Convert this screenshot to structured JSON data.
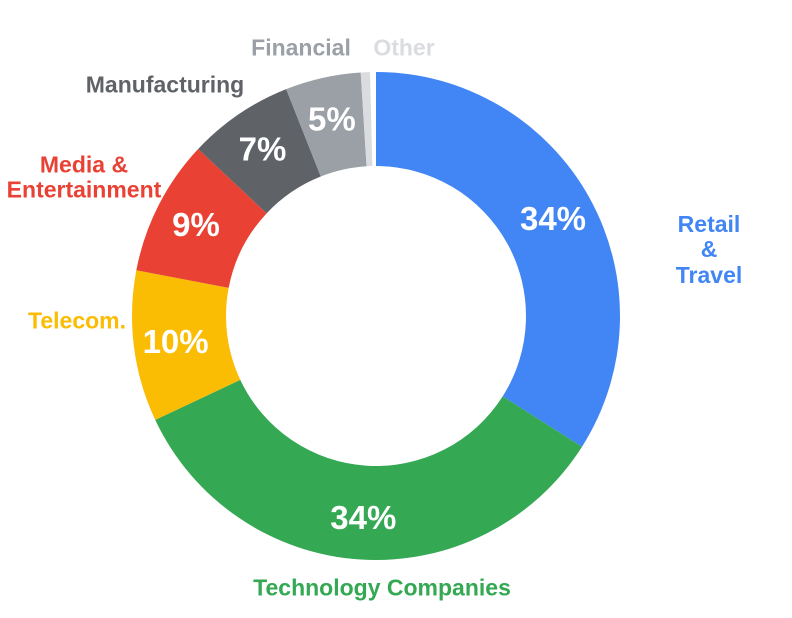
{
  "chart_data": {
    "type": "pie",
    "subtype": "donut",
    "title": "",
    "unit": "%",
    "direction": "clockwise",
    "start_angle_deg": 0,
    "legend_position": "outside-labels",
    "background_color": "#FFFFFF",
    "value_label_color": "#FFFFFF",
    "categories": [
      "Retail & Travel",
      "Technology Companies",
      "Telecom.",
      "Media & Entertainment",
      "Manufacturing",
      "Financial",
      "Other"
    ],
    "values": [
      34,
      34,
      10,
      9,
      7,
      5,
      1
    ],
    "slices": [
      {
        "label": "Retail & Travel",
        "value": 34,
        "pct_label": "34%",
        "color": "#4285F4",
        "label_color": "#4285F4"
      },
      {
        "label": "Technology Companies",
        "value": 34,
        "pct_label": "34%",
        "color": "#34A853",
        "label_color": "#34A853"
      },
      {
        "label": "Telecom.",
        "value": 10,
        "pct_label": "10%",
        "color": "#FBBC04",
        "label_color": "#FBBC04"
      },
      {
        "label": "Media &\nEntertainment",
        "value": 9,
        "pct_label": "9%",
        "color": "#E94235",
        "label_color": "#E94235"
      },
      {
        "label": "Manufacturing",
        "value": 7,
        "pct_label": "7%",
        "color": "#5F6368",
        "label_color": "#5F6368"
      },
      {
        "label": "Financial",
        "value": 5,
        "pct_label": "5%",
        "color": "#9AA0A6",
        "label_color": "#9AA0A6"
      },
      {
        "label": "Other",
        "value": 1,
        "pct_label": "",
        "color": "#DADCE0",
        "label_color": "#DADCE0"
      }
    ]
  }
}
